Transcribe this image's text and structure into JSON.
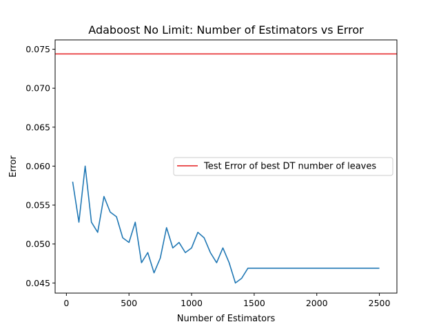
{
  "chart_data": {
    "type": "line",
    "title": "Adaboost No Limit: Number of Estimators vs Error",
    "xlabel": "Number of Estimators",
    "ylabel": "Error",
    "xlim": [
      -90,
      2640
    ],
    "ylim": [
      0.0437,
      0.0762
    ],
    "xticks": [
      0,
      500,
      1000,
      1500,
      2000,
      2500
    ],
    "xtick_labels": [
      "0",
      "500",
      "1000",
      "1500",
      "2000",
      "2500"
    ],
    "yticks": [
      0.045,
      0.05,
      0.055,
      0.06,
      0.065,
      0.07,
      0.075
    ],
    "ytick_labels": [
      "0.045",
      "0.050",
      "0.055",
      "0.060",
      "0.065",
      "0.070",
      "0.075"
    ],
    "grid": false,
    "legend_position": "center-right",
    "series": [
      {
        "type": "line",
        "color": "#1f77b4",
        "x": [
          50,
          100,
          150,
          200,
          250,
          300,
          350,
          400,
          450,
          500,
          550,
          600,
          650,
          700,
          750,
          800,
          850,
          900,
          950,
          1000,
          1050,
          1100,
          1150,
          1200,
          1250,
          1300,
          1350,
          1400,
          1450,
          1500,
          1550,
          1600,
          1650,
          1700,
          1750,
          1800,
          1850,
          1900,
          1950,
          2000,
          2050,
          2100,
          2150,
          2200,
          2250,
          2300,
          2350,
          2400,
          2450,
          2500
        ],
        "y": [
          0.058,
          0.0528,
          0.06,
          0.0528,
          0.0515,
          0.0561,
          0.0541,
          0.0535,
          0.0508,
          0.0502,
          0.0528,
          0.0476,
          0.0489,
          0.0463,
          0.0482,
          0.0521,
          0.0495,
          0.0502,
          0.0489,
          0.0495,
          0.0515,
          0.0508,
          0.0489,
          0.0476,
          0.0495,
          0.0476,
          0.045,
          0.0456,
          0.0469,
          0.0469,
          0.0469,
          0.0469,
          0.0469,
          0.0469,
          0.0469,
          0.0469,
          0.0469,
          0.0469,
          0.0469,
          0.0469,
          0.0469,
          0.0469,
          0.0469,
          0.0469,
          0.0469,
          0.0469,
          0.0469,
          0.0469,
          0.0469,
          0.0469
        ]
      },
      {
        "type": "hline",
        "name": "Test Error of best DT number of leaves",
        "color": "#e41a1c",
        "y": 0.0744
      }
    ]
  }
}
